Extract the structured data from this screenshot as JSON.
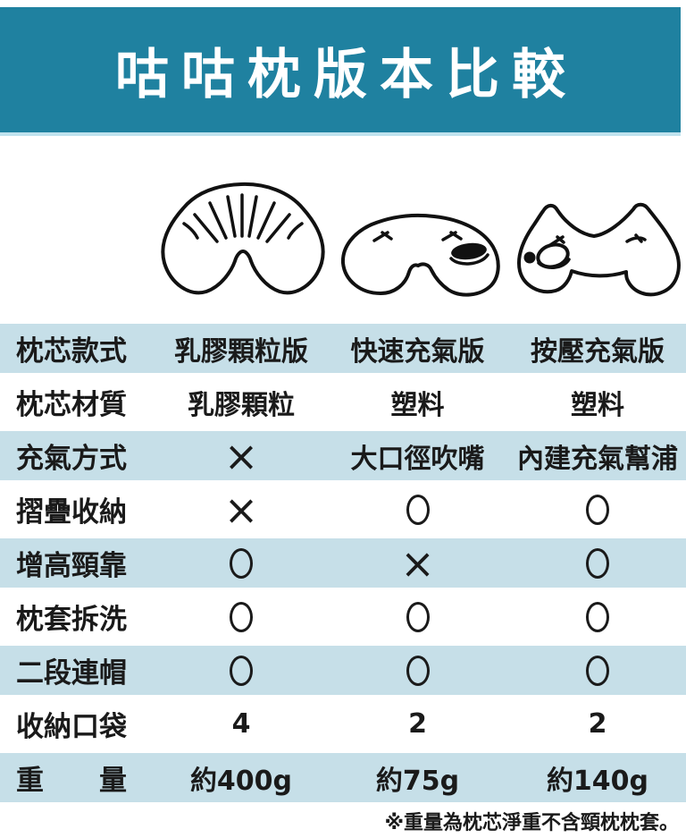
{
  "header": {
    "title": "咕咕枕版本比較"
  },
  "table": {
    "rows": [
      {
        "label": "枕芯款式",
        "cells": [
          "乳膠顆粒版",
          "快速充氣版",
          "按壓充氣版"
        ],
        "shaded": true
      },
      {
        "label": "枕芯材質",
        "cells": [
          "乳膠顆粒",
          "塑料",
          "塑料"
        ],
        "shaded": false
      },
      {
        "label": "充氣方式",
        "cells": [
          "×",
          "大口徑吹嘴",
          "內建充氣幫浦"
        ],
        "shaded": true
      },
      {
        "label": "摺疊收納",
        "cells": [
          "×",
          "○",
          "○"
        ],
        "shaded": false
      },
      {
        "label": "增高頸靠",
        "cells": [
          "○",
          "×",
          "○"
        ],
        "shaded": true
      },
      {
        "label": "枕套拆洗",
        "cells": [
          "○",
          "○",
          "○"
        ],
        "shaded": false
      },
      {
        "label": "二段連帽",
        "cells": [
          "○",
          "○",
          "○"
        ],
        "shaded": true
      },
      {
        "label": "收納口袋",
        "cells": [
          "4",
          "2",
          "2"
        ],
        "shaded": false
      },
      {
        "label": "重　　量",
        "cells": [
          "約400g",
          "約75g",
          "約140g"
        ],
        "shaded": true
      }
    ]
  },
  "footnote": "※重量為枕芯淨重不含頸枕枕套。",
  "illustrations": [
    {
      "name": "latex-granule-pillow"
    },
    {
      "name": "quick-inflate-pillow"
    },
    {
      "name": "press-pump-pillow"
    }
  ],
  "colors": {
    "banner": "#1F81A0",
    "banner_underline": "#BFE2EE",
    "row_shade": "#C6DFE8",
    "symbol": "#1A1A1A"
  }
}
